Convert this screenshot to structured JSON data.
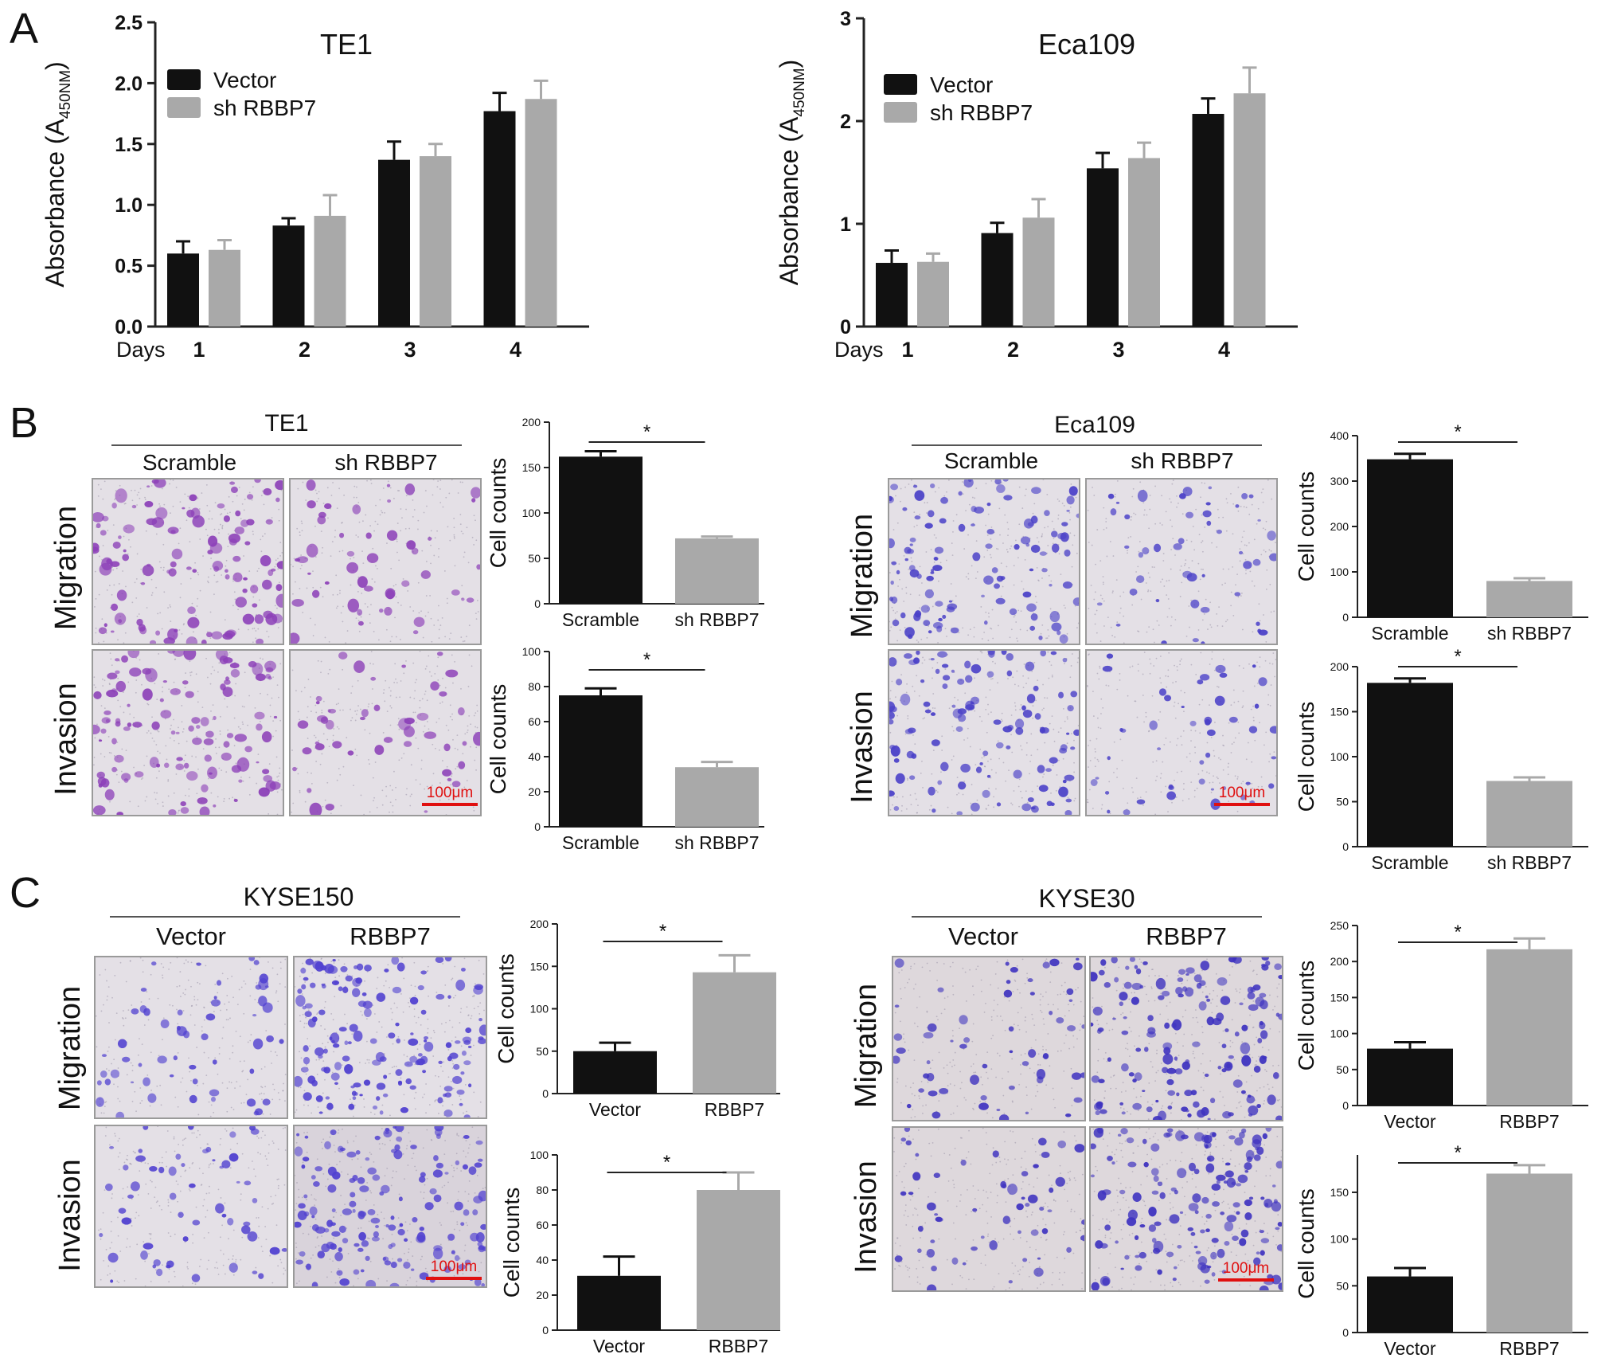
{
  "panel_labels": [
    "A",
    "B",
    "C"
  ],
  "micrographs": {
    "B": {
      "groups": [
        {
          "title": "TE1",
          "conditions": [
            "Scramble",
            "sh RBBP7"
          ],
          "rows": [
            "Migration",
            "Invasion"
          ],
          "scale": "100μm",
          "colors": [
            "#8c3fb8",
            "#8c3fb8"
          ]
        },
        {
          "title": "Eca109",
          "conditions": [
            "Scramble",
            "sh RBBP7"
          ],
          "rows": [
            "Migration",
            "Invasion"
          ],
          "scale": "100μm",
          "colors": [
            "#4a40c8",
            "#4a40c8"
          ]
        }
      ]
    },
    "C": {
      "groups": [
        {
          "title": "KYSE150",
          "conditions": [
            "Vector",
            "RBBP7"
          ],
          "rows": [
            "Migration",
            "Invasion"
          ],
          "scale": "100μm",
          "colors": [
            "#5040d0",
            "#5040d0"
          ]
        },
        {
          "title": "KYSE30",
          "conditions": [
            "Vector",
            "RBBP7"
          ],
          "rows": [
            "Migration",
            "Invasion"
          ],
          "scale": "100μm",
          "colors": [
            "#3e32c0",
            "#3e32c0"
          ]
        }
      ]
    }
  },
  "chart_data": [
    {
      "id": "A-TE1",
      "type": "bar",
      "title": "TE1",
      "xlabel": "Days",
      "ylabel": "Absorbance (A450NM)",
      "categories": [
        "1",
        "2",
        "3",
        "4"
      ],
      "ylim": [
        0,
        2.5
      ],
      "yticks": [
        "0.0",
        "0.5",
        "1.0",
        "1.5",
        "2.0",
        "2.5"
      ],
      "legend_position": "top-left",
      "series": [
        {
          "name": "Vector",
          "color": "#111111",
          "values": [
            0.6,
            0.83,
            1.37,
            1.77
          ],
          "errors": [
            0.1,
            0.06,
            0.15,
            0.15
          ]
        },
        {
          "name": "sh RBBP7",
          "color": "#a9a9a9",
          "values": [
            0.63,
            0.91,
            1.4,
            1.87
          ],
          "errors": [
            0.08,
            0.17,
            0.1,
            0.15
          ]
        }
      ]
    },
    {
      "id": "A-Eca109",
      "type": "bar",
      "title": "Eca109",
      "xlabel": "Days",
      "ylabel": "Absorbance (A450NM)",
      "categories": [
        "1",
        "2",
        "3",
        "4"
      ],
      "ylim": [
        0,
        3
      ],
      "yticks": [
        "0",
        "1",
        "2",
        "3"
      ],
      "legend_position": "top-left",
      "series": [
        {
          "name": "Vector",
          "color": "#111111",
          "values": [
            0.62,
            0.91,
            1.54,
            2.07
          ],
          "errors": [
            0.12,
            0.1,
            0.15,
            0.15
          ]
        },
        {
          "name": "sh RBBP7",
          "color": "#a9a9a9",
          "values": [
            0.63,
            1.06,
            1.64,
            2.27
          ],
          "errors": [
            0.08,
            0.18,
            0.15,
            0.25
          ]
        }
      ]
    },
    {
      "id": "B-TE1-Migration",
      "type": "bar",
      "ylabel": "Cell counts",
      "categories": [
        "Scramble",
        "sh RBBP7"
      ],
      "values": [
        162,
        72
      ],
      "errors": [
        6,
        2
      ],
      "ylim": [
        0,
        200
      ],
      "yticks": [
        "0",
        "50",
        "100",
        "150",
        "200"
      ],
      "significance": "*",
      "colors": [
        "#111111",
        "#a9a9a9"
      ]
    },
    {
      "id": "B-TE1-Invasion",
      "type": "bar",
      "ylabel": "Cell counts",
      "categories": [
        "Scramble",
        "sh RBBP7"
      ],
      "values": [
        75,
        34
      ],
      "errors": [
        4,
        3
      ],
      "ylim": [
        0,
        100
      ],
      "yticks": [
        "0",
        "20",
        "40",
        "60",
        "80",
        "100"
      ],
      "significance": "*",
      "colors": [
        "#111111",
        "#a9a9a9"
      ]
    },
    {
      "id": "B-Eca109-Migration",
      "type": "bar",
      "ylabel": "Cell counts",
      "categories": [
        "Scramble",
        "sh RBBP7"
      ],
      "values": [
        348,
        80
      ],
      "errors": [
        12,
        6
      ],
      "ylim": [
        0,
        400
      ],
      "yticks": [
        "0",
        "100",
        "200",
        "300",
        "400"
      ],
      "significance": "*",
      "colors": [
        "#111111",
        "#a9a9a9"
      ]
    },
    {
      "id": "B-Eca109-Invasion",
      "type": "bar",
      "ylabel": "Cell counts",
      "categories": [
        "Scramble",
        "sh RBBP7"
      ],
      "values": [
        182,
        73
      ],
      "errors": [
        5,
        4
      ],
      "ylim": [
        0,
        200
      ],
      "yticks": [
        "0",
        "50",
        "100",
        "150",
        "200"
      ],
      "significance": "*",
      "colors": [
        "#111111",
        "#a9a9a9"
      ]
    },
    {
      "id": "C-KYSE150-Migration",
      "type": "bar",
      "ylabel": "Cell counts",
      "categories": [
        "Vector",
        "RBBP7"
      ],
      "values": [
        50,
        143
      ],
      "errors": [
        10,
        20
      ],
      "ylim": [
        0,
        200
      ],
      "yticks": [
        "0",
        "50",
        "100",
        "150",
        "200"
      ],
      "significance": "*",
      "colors": [
        "#111111",
        "#a9a9a9"
      ]
    },
    {
      "id": "C-KYSE150-Invasion",
      "type": "bar",
      "ylabel": "Cell counts",
      "categories": [
        "Vector",
        "RBBP7"
      ],
      "values": [
        31,
        80
      ],
      "errors": [
        11,
        10
      ],
      "ylim": [
        0,
        100
      ],
      "yticks": [
        "0",
        "20",
        "40",
        "60",
        "80",
        "100"
      ],
      "significance": "*",
      "colors": [
        "#111111",
        "#a9a9a9"
      ]
    },
    {
      "id": "C-KYSE30-Migration",
      "type": "bar",
      "ylabel": "Cell counts",
      "categories": [
        "Vector",
        "RBBP7"
      ],
      "values": [
        79,
        217
      ],
      "errors": [
        9,
        15
      ],
      "ylim": [
        0,
        250
      ],
      "yticks": [
        "0",
        "50",
        "100",
        "150",
        "200",
        "250"
      ],
      "significance": "*",
      "colors": [
        "#111111",
        "#a9a9a9"
      ]
    },
    {
      "id": "C-KYSE30-Invasion",
      "type": "bar",
      "ylabel": "Cell counts",
      "categories": [
        "Vector",
        "RBBP7"
      ],
      "values": [
        60,
        170
      ],
      "errors": [
        9,
        9
      ],
      "ylim": [
        0,
        190
      ],
      "yticks": [
        "0",
        "50",
        "100",
        "150"
      ],
      "significance": "*",
      "colors": [
        "#111111",
        "#a9a9a9"
      ]
    }
  ]
}
